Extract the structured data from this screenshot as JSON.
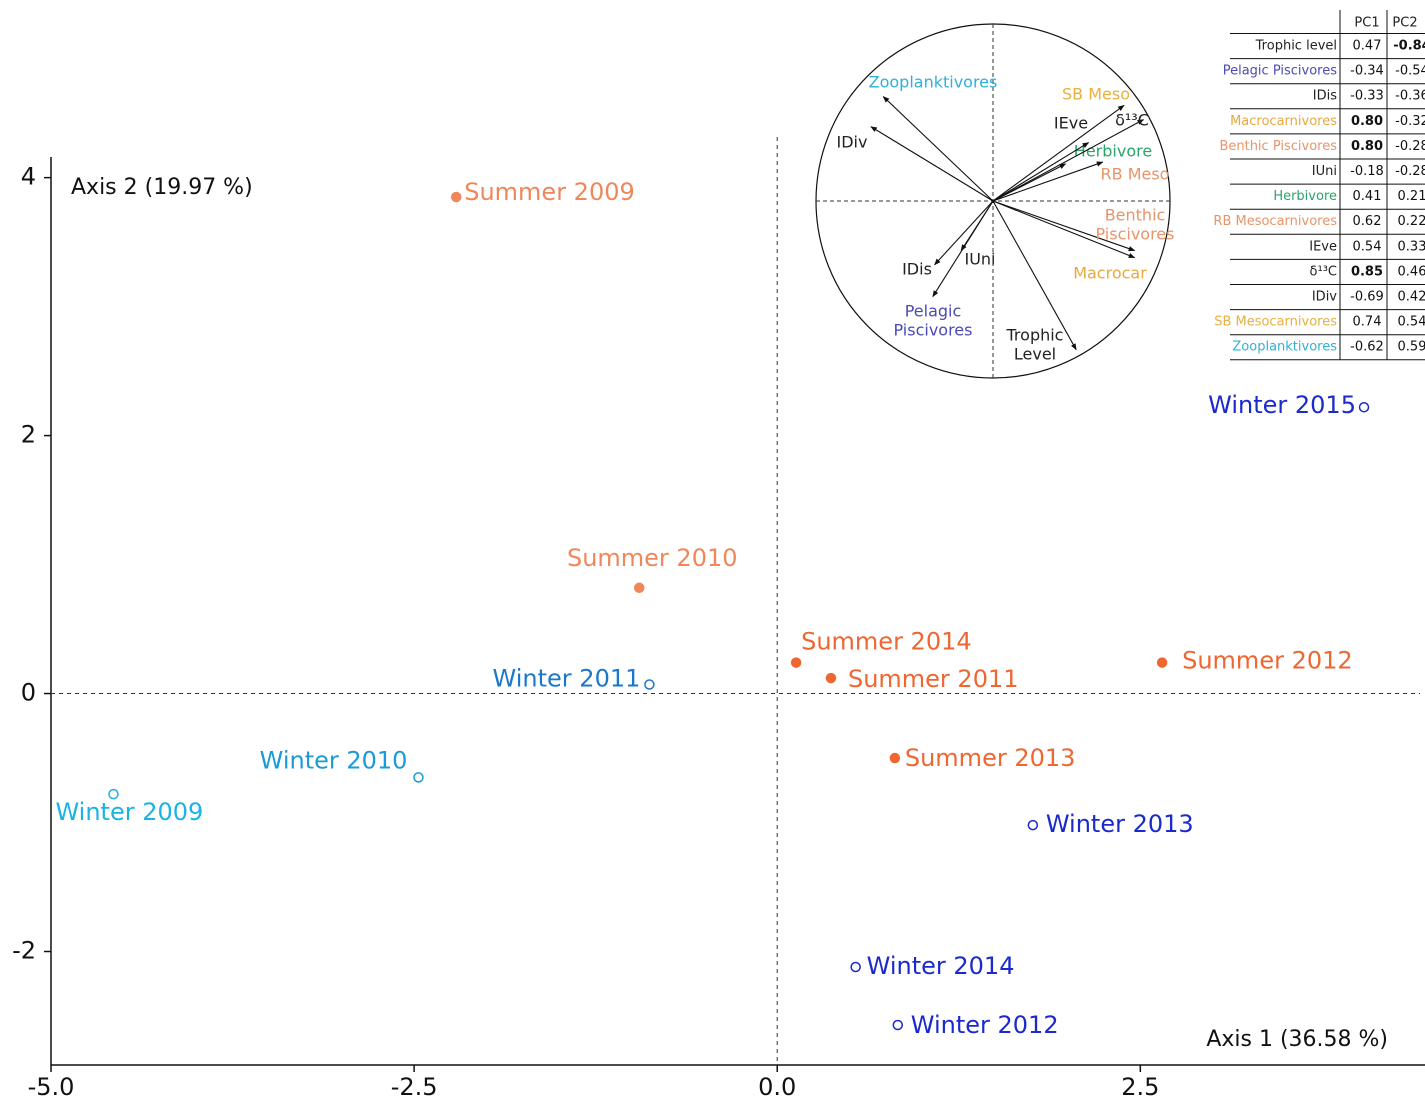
{
  "chart_data": {
    "type": "scatter",
    "x_label": "Axis 1 (36.58 %)",
    "y_label": "Axis 2 (19.97 %)",
    "xlim": [
      -5.0,
      4.46
    ],
    "ylim": [
      -2.88,
      4.16
    ],
    "xticks": [
      {
        "value": -5,
        "label": "-5.0"
      },
      {
        "value": -2.5,
        "label": "-2.5"
      },
      {
        "value": 0,
        "label": "0.0"
      },
      {
        "value": 2.5,
        "label": "2.5"
      }
    ],
    "yticks": [
      4,
      2,
      0,
      -2
    ],
    "points": [
      {
        "label": "Summer 2009",
        "x": -2.21,
        "y": 3.85,
        "color": "#f0875a",
        "marker": "filled"
      },
      {
        "label": "Summer 2010",
        "x": -0.95,
        "y": 0.82,
        "color": "#f0875a",
        "marker": "filled"
      },
      {
        "label": "Summer 2014",
        "x": 0.13,
        "y": 0.24,
        "color": "#ee6630",
        "marker": "filled"
      },
      {
        "label": "Summer 2011",
        "x": 0.37,
        "y": 0.12,
        "color": "#ee6630",
        "marker": "filled"
      },
      {
        "label": "Summer 2012",
        "x": 2.65,
        "y": 0.24,
        "color": "#ee6630",
        "marker": "filled"
      },
      {
        "label": "Summer 2013",
        "x": 0.81,
        "y": -0.5,
        "color": "#ee6630",
        "marker": "filled"
      },
      {
        "label": "Winter 2011",
        "x": -0.88,
        "y": 0.07,
        "color": "#1a78cc",
        "marker": "open"
      },
      {
        "label": "Winter 2010",
        "x": -2.47,
        "y": -0.65,
        "color": "#1a9bd8",
        "marker": "open"
      },
      {
        "label": "Winter 2009",
        "x": -4.57,
        "y": -0.78,
        "color": "#1ab4e4",
        "marker": "open"
      },
      {
        "label": "Winter 2015",
        "x": 4.04,
        "y": 2.22,
        "color": "#1a2acc",
        "marker": "open"
      },
      {
        "label": "Winter 2013",
        "x": 1.76,
        "y": -1.02,
        "color": "#1a2acc",
        "marker": "open"
      },
      {
        "label": "Winter 2014",
        "x": 0.54,
        "y": -2.12,
        "color": "#1a2acc",
        "marker": "open"
      },
      {
        "label": "Winter 2012",
        "x": 0.83,
        "y": -2.57,
        "color": "#1a2acc",
        "marker": "open"
      }
    ],
    "loadings": {
      "columns": [
        "PC1",
        "PC2"
      ],
      "variables": [
        "Trophic level",
        "Pelagic Piscivores",
        "IDis",
        "Macrocarnivores",
        "Benthic Piscivores",
        "IUni",
        "Herbivore",
        "RB Mesocarnivores",
        "IEve",
        "δ¹³C",
        "IDiv",
        "SB Mesocarnivores",
        "Zooplanktivores"
      ],
      "colors": [
        "#222222",
        "#4a4ab4",
        "#222222",
        "#e8a840",
        "#e8946a",
        "#222222",
        "#2aa56a",
        "#e8946a",
        "#222222",
        "#222222",
        "#222222",
        "#e8b040",
        "#30b0d8"
      ],
      "arrow_labels": [
        [
          "Trophic",
          "Level"
        ],
        [
          "Pelagic",
          "Piscivores"
        ],
        [
          "IDis"
        ],
        [
          "Macrocar"
        ],
        [
          "Benthic",
          "Piscivores"
        ],
        [
          "IUni"
        ],
        [
          "Herbivore"
        ],
        [
          "RB Meso"
        ],
        [
          "IEve"
        ],
        [
          "δ¹³C"
        ],
        [
          "IDiv"
        ],
        [
          "SB Meso"
        ],
        [
          "Zooplanktivores"
        ]
      ],
      "pc1": [
        0.47,
        -0.34,
        -0.33,
        0.8,
        0.8,
        -0.18,
        0.41,
        0.62,
        0.54,
        0.85,
        -0.69,
        0.74,
        -0.62
      ],
      "pc1_labels": [
        "0.47",
        "-0.34",
        "-0.33",
        "0.80",
        "0.80",
        "-0.18",
        "0.41",
        "0.62",
        "0.54",
        "0.85",
        "-0.69",
        "0.74",
        "-0.62"
      ],
      "pc1_bold": [
        false,
        false,
        false,
        true,
        true,
        false,
        false,
        false,
        false,
        true,
        false,
        false,
        false
      ],
      "pc2": [
        -0.84,
        -0.54,
        -0.36,
        -0.32,
        -0.28,
        -0.28,
        0.21,
        0.22,
        0.33,
        0.46,
        0.42,
        0.54,
        0.59
      ],
      "pc2_labels": [
        "-0.84",
        "-0.54",
        "-0.36",
        "-0.32",
        "-0.28",
        "-0.28",
        "0.21",
        "0.22",
        "0.33",
        "0.46",
        "0.42",
        "0.54",
        "0.59"
      ],
      "pc2_bold": [
        true,
        false,
        false,
        false,
        false,
        false,
        false,
        false,
        false,
        false,
        false,
        false,
        false
      ]
    }
  }
}
